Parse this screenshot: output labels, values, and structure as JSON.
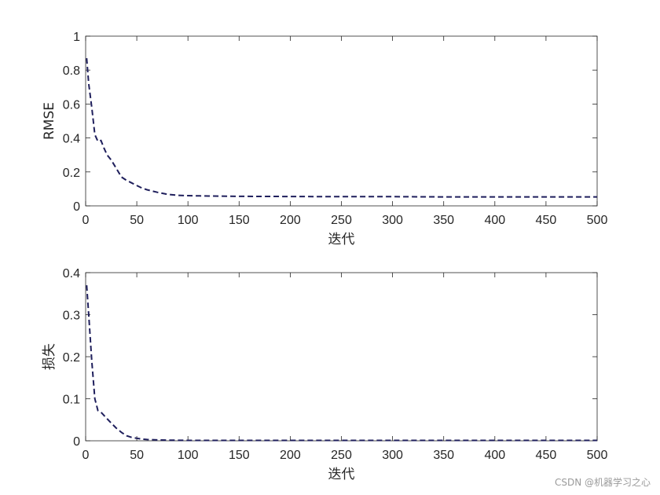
{
  "chart_data": [
    {
      "type": "line",
      "xlabel": "迭代",
      "ylabel": "RMSE",
      "xlim": [
        0,
        500
      ],
      "ylim": [
        0,
        1
      ],
      "xticks": [
        0,
        50,
        100,
        150,
        200,
        250,
        300,
        350,
        400,
        450,
        500
      ],
      "yticks": [
        0,
        0.2,
        0.4,
        0.6,
        0.8,
        1
      ],
      "line_style": "dashed",
      "line_color": "#1f1f5c",
      "grid": false,
      "x": [
        1,
        3,
        6,
        9,
        12,
        15,
        18,
        21,
        25,
        30,
        35,
        40,
        45,
        50,
        55,
        60,
        70,
        80,
        90,
        100,
        120,
        150,
        200,
        250,
        300,
        350,
        400,
        450,
        500
      ],
      "y": [
        0.87,
        0.72,
        0.58,
        0.42,
        0.38,
        0.385,
        0.34,
        0.3,
        0.27,
        0.22,
        0.17,
        0.15,
        0.135,
        0.12,
        0.105,
        0.095,
        0.08,
        0.068,
        0.062,
        0.06,
        0.058,
        0.056,
        0.055,
        0.054,
        0.054,
        0.053,
        0.053,
        0.053,
        0.053
      ]
    },
    {
      "type": "line",
      "xlabel": "迭代",
      "ylabel": "损失",
      "xlim": [
        0,
        500
      ],
      "ylim": [
        0,
        0.4
      ],
      "xticks": [
        0,
        50,
        100,
        150,
        200,
        250,
        300,
        350,
        400,
        450,
        500
      ],
      "yticks": [
        0,
        0.1,
        0.2,
        0.3,
        0.4
      ],
      "line_style": "dashed",
      "line_color": "#1f1f5c",
      "grid": false,
      "x": [
        1,
        3,
        6,
        9,
        12,
        15,
        20,
        25,
        30,
        35,
        40,
        45,
        50,
        55,
        60,
        70,
        80,
        100,
        150,
        200,
        250,
        300,
        350,
        400,
        450,
        500
      ],
      "y": [
        0.37,
        0.3,
        0.19,
        0.1,
        0.072,
        0.068,
        0.055,
        0.042,
        0.03,
        0.02,
        0.012,
        0.008,
        0.006,
        0.004,
        0.003,
        0.002,
        0.0015,
        0.001,
        0.001,
        0.001,
        0.001,
        0.001,
        0.001,
        0.001,
        0.001,
        0.001
      ]
    }
  ],
  "watermark": "CSDN @机器学习之心"
}
